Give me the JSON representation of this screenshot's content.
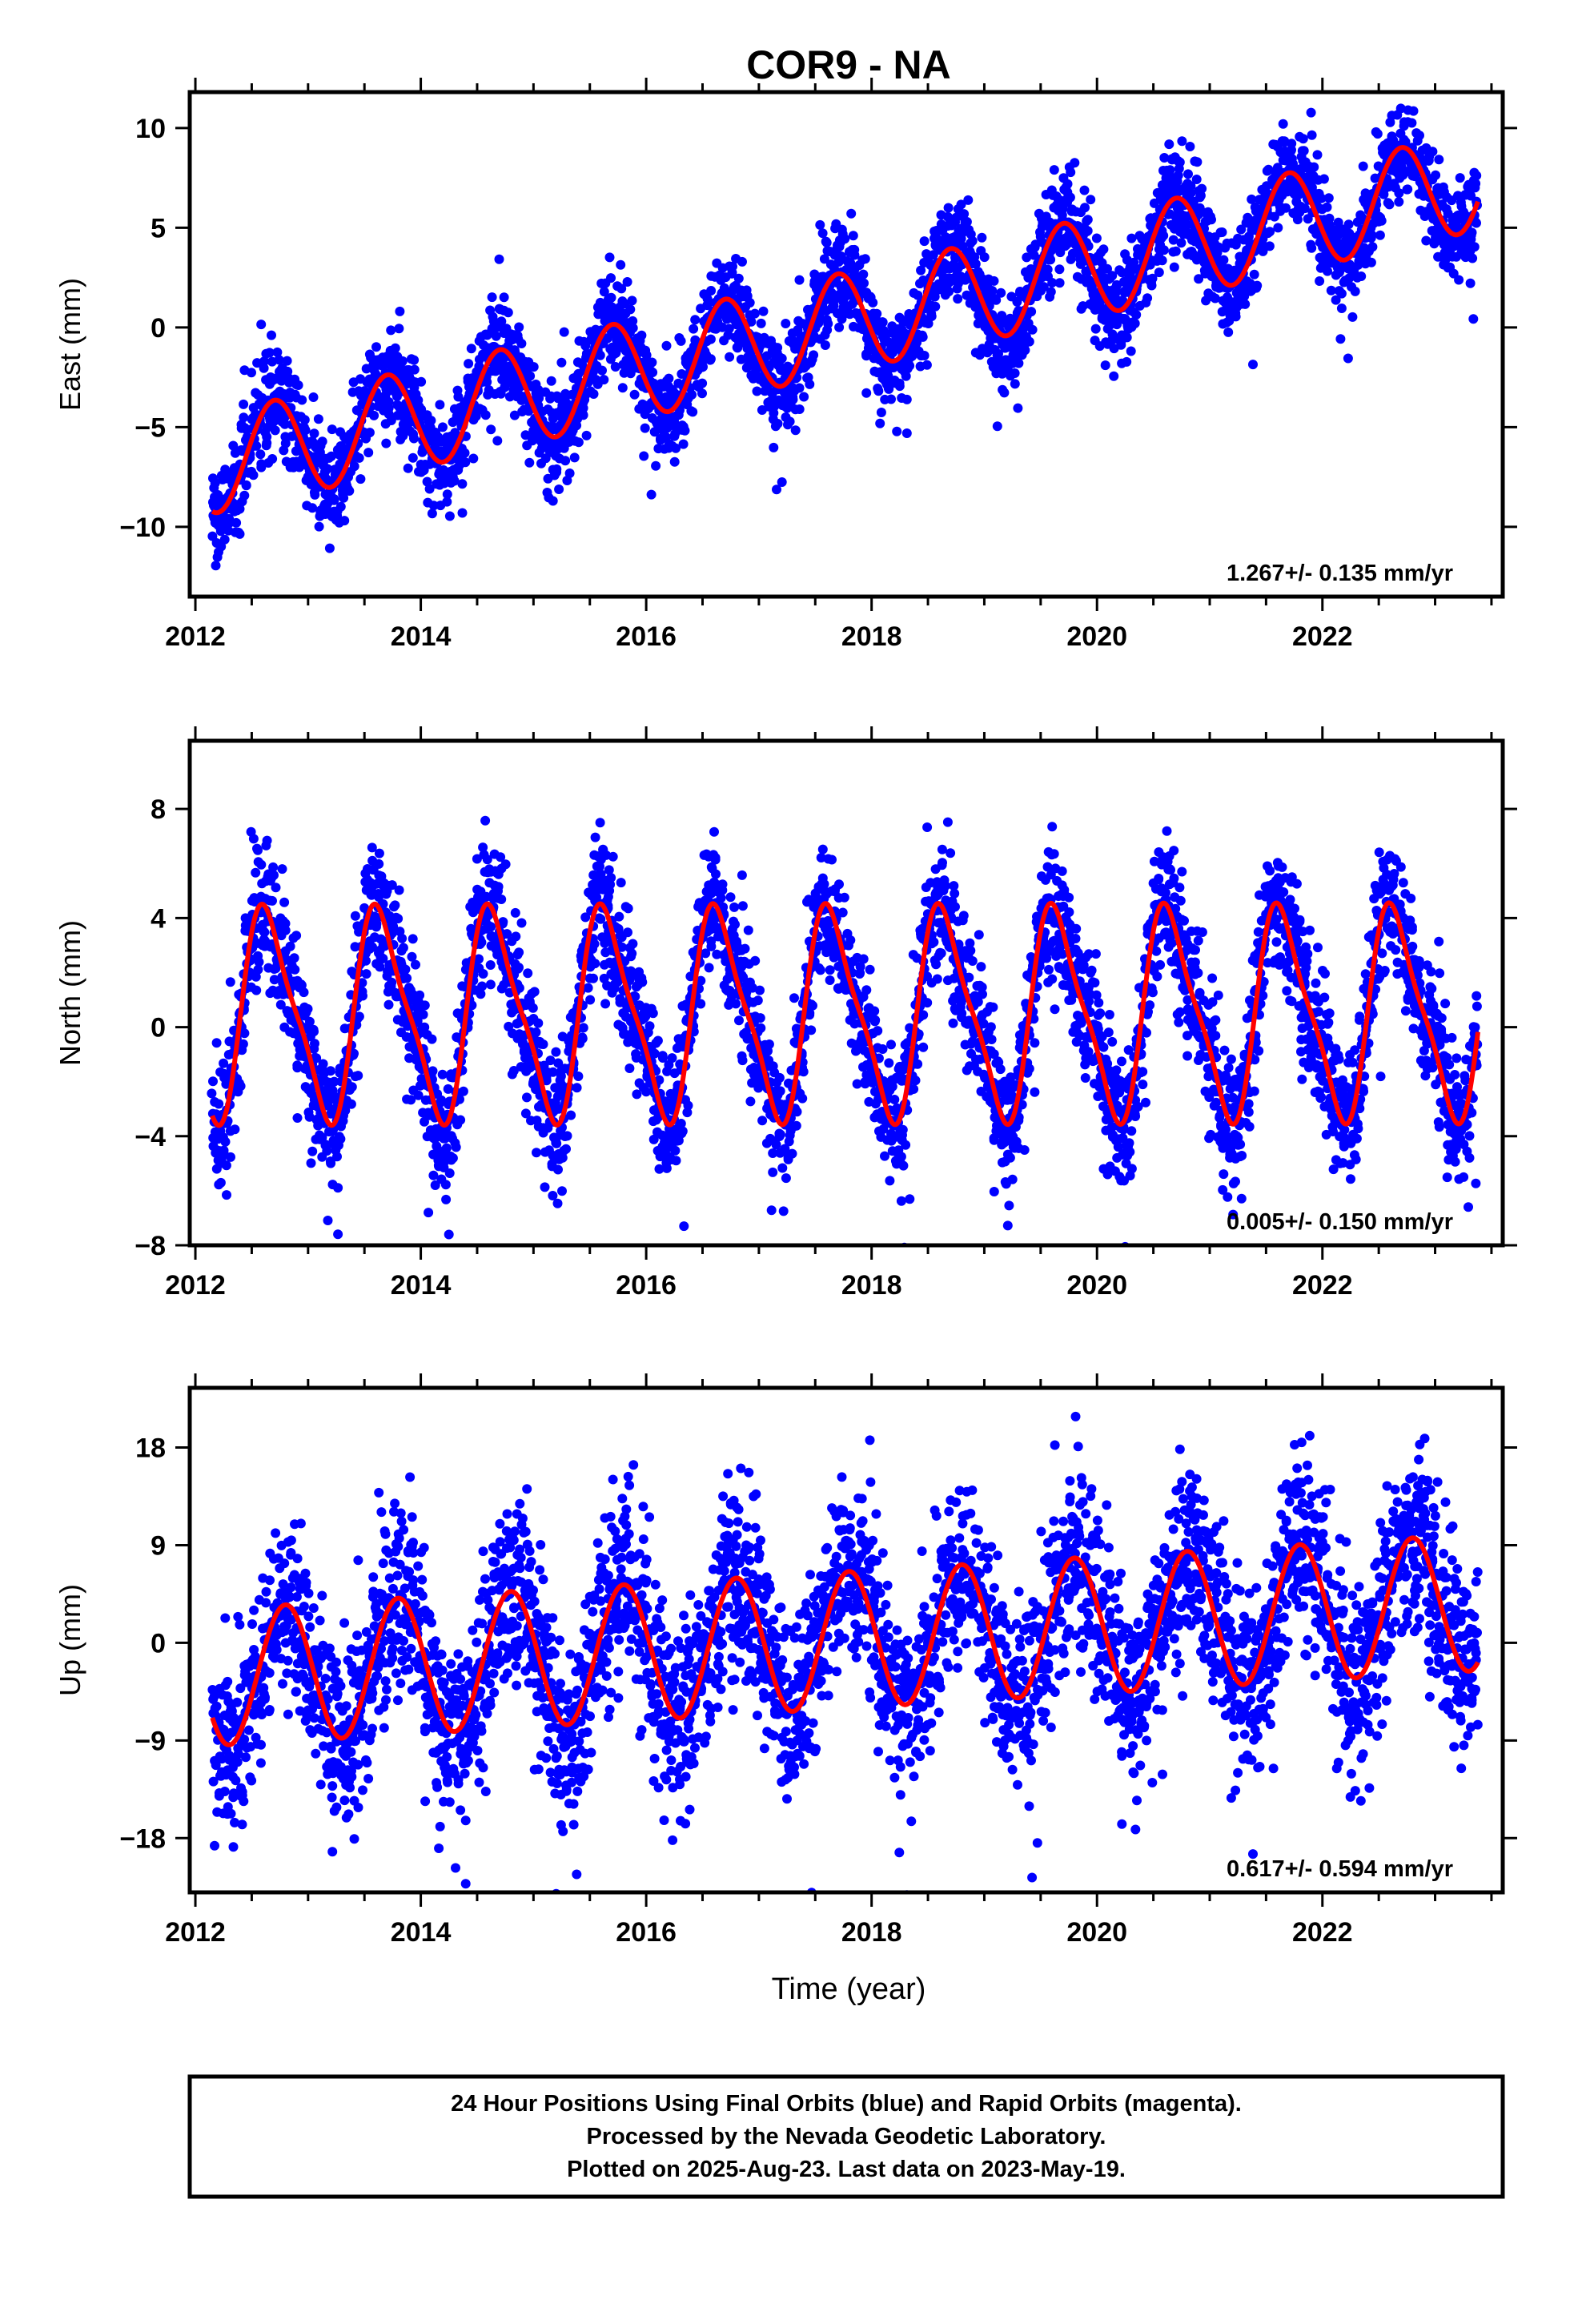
{
  "title": "COR9 - NA",
  "xlabel": "Time (year)",
  "footer": {
    "line1": "24 Hour Positions Using Final Orbits (blue) and Rapid Orbits (magenta).",
    "line2": "Processed by the Nevada Geodetic Laboratory.",
    "line3": "Plotted on 2025-Aug-23. Last data on 2023-May-19."
  },
  "colors": {
    "final_orbits": "#0000ff",
    "model": "#ff0000",
    "frame": "#000000"
  },
  "chart_data": [
    {
      "type": "scatter",
      "ylabel": "East (mm)",
      "rate_label": "1.267+/- 0.135 mm/yr",
      "xlim": [
        2011.95,
        2023.6
      ],
      "ylim": [
        -13.5,
        11.8
      ],
      "xticks": [
        2012,
        2014,
        2016,
        2018,
        2020,
        2022
      ],
      "yticks": [
        -10,
        -5,
        0,
        5,
        10
      ],
      "yticklabels": [
        "−10",
        "−5",
        "0",
        "5",
        "10"
      ],
      "data_start": 2012.15,
      "data_end": 2023.38,
      "trend": {
        "intercept_at_2012_15": -6.85,
        "rate": 1.267
      },
      "annual": {
        "amplitude": 2.5,
        "phase": 0.45
      },
      "semiannual": {
        "amplitude": 0.0,
        "phase": 0.0
      },
      "scatter_sigma": 1.2,
      "series": [
        {
          "name": "Final Orbits",
          "color": "#0000ff"
        },
        {
          "name": "model",
          "color": "#ff0000"
        }
      ]
    },
    {
      "type": "scatter",
      "ylabel": "North (mm)",
      "rate_label": "0.005+/- 0.150 mm/yr",
      "xlim": [
        2011.95,
        2023.6
      ],
      "ylim": [
        -8.0,
        10.5
      ],
      "xticks": [
        2012,
        2014,
        2016,
        2018,
        2020,
        2022
      ],
      "yticks": [
        -8,
        -4,
        0,
        4,
        8
      ],
      "yticklabels": [
        "−8",
        "−4",
        "0",
        "4",
        "8"
      ],
      "data_start": 2012.15,
      "data_end": 2023.38,
      "trend": {
        "intercept_at_2012_15": 0.45,
        "rate": 0.005
      },
      "annual": {
        "amplitude": 3.7,
        "phase": 0.4
      },
      "semiannual": {
        "amplitude": 0.9,
        "phase": 0.4
      },
      "scatter_sigma": 1.2,
      "series": [
        {
          "name": "Final Orbits",
          "color": "#0000ff"
        },
        {
          "name": "model",
          "color": "#ff0000"
        }
      ]
    },
    {
      "type": "scatter",
      "ylabel": "Up (mm)",
      "rate_label": "0.617+/- 0.594 mm/yr",
      "xlim": [
        2011.95,
        2023.6
      ],
      "ylim": [
        -23.0,
        23.5
      ],
      "xticks": [
        2012,
        2014,
        2016,
        2018,
        2020,
        2022
      ],
      "yticks": [
        -18,
        -9,
        0,
        9,
        18
      ],
      "yticklabels": [
        "−18",
        "−9",
        "0",
        "9",
        "18"
      ],
      "data_start": 2012.15,
      "data_end": 2023.38,
      "trend": {
        "intercept_at_2012_15": -3.2,
        "rate": 0.617
      },
      "annual": {
        "amplitude": 6.3,
        "phase": 0.55
      },
      "semiannual": {
        "amplitude": 0.0,
        "phase": 0.0
      },
      "scatter_sigma": 4.2,
      "series": [
        {
          "name": "Final Orbits",
          "color": "#0000ff"
        },
        {
          "name": "model",
          "color": "#ff0000"
        }
      ]
    }
  ]
}
